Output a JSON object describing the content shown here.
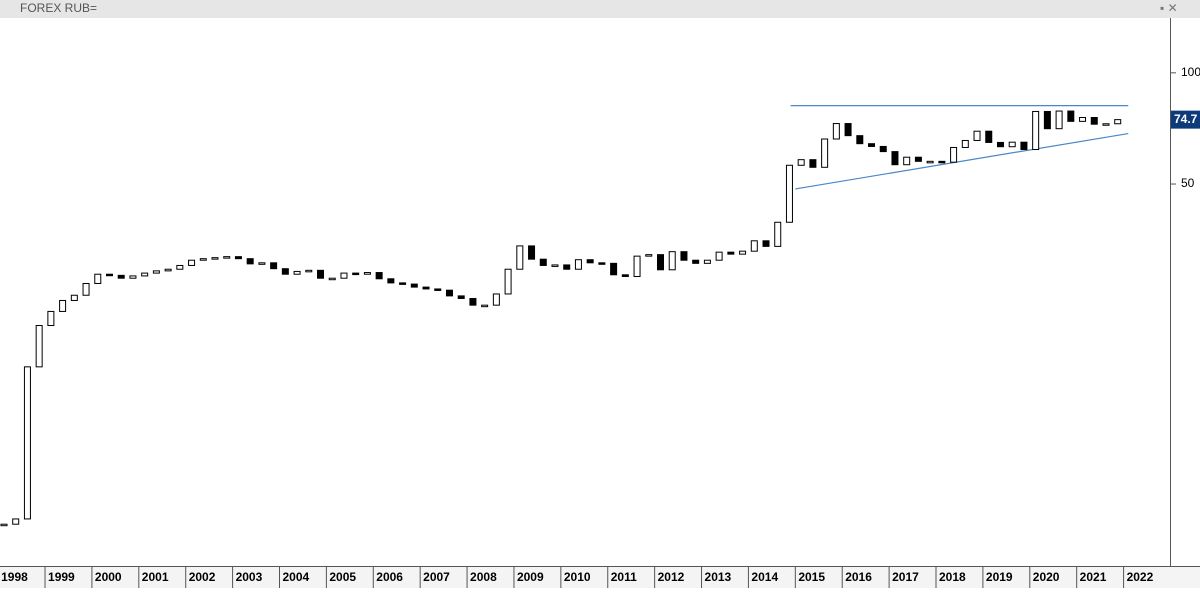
{
  "chart_data": {
    "type": "candlestick",
    "title": "FOREX RUB=",
    "log_scale": true,
    "up_color": "#ffffff",
    "down_color": "#000000",
    "x": [
      1998.125,
      1998.375,
      1998.625,
      1998.875,
      1999.125,
      1999.375,
      1999.625,
      1999.875,
      2000.125,
      2000.375,
      2000.625,
      2000.875,
      2001.125,
      2001.375,
      2001.625,
      2001.875,
      2002.125,
      2002.375,
      2002.625,
      2002.875,
      2003.125,
      2003.375,
      2003.625,
      2003.875,
      2004.125,
      2004.375,
      2004.625,
      2004.875,
      2005.125,
      2005.375,
      2005.625,
      2005.875,
      2006.125,
      2006.375,
      2006.625,
      2006.875,
      2007.125,
      2007.375,
      2007.625,
      2007.875,
      2008.125,
      2008.375,
      2008.625,
      2008.875,
      2009.125,
      2009.375,
      2009.625,
      2009.875,
      2010.125,
      2010.375,
      2010.625,
      2010.875,
      2011.125,
      2011.375,
      2011.625,
      2011.875,
      2012.125,
      2012.375,
      2012.625,
      2012.875,
      2013.125,
      2013.375,
      2013.625,
      2013.875,
      2014.125,
      2014.375,
      2014.625,
      2014.875,
      2015.125,
      2015.375,
      2015.625,
      2015.875,
      2016.125,
      2016.375,
      2016.625,
      2016.875,
      2017.125,
      2017.375,
      2017.625,
      2017.875,
      2018.125,
      2018.375,
      2018.625,
      2018.875,
      2019.125,
      2019.375,
      2019.625,
      2019.875,
      2020.125,
      2020.375,
      2020.625,
      2020.875,
      2021.125,
      2021.375,
      2021.625,
      2021.875
    ],
    "values": [
      6.0,
      6.2,
      16,
      20.7,
      22.6,
      24.2,
      25,
      26.9,
      28.5,
      28.3,
      27.8,
      28.2,
      28.7,
      29.1,
      29.4,
      30.1,
      31.1,
      31.4,
      31.6,
      31.8,
      31.4,
      30.4,
      30.6,
      29.5,
      28.5,
      29.0,
      29.2,
      27.8,
      27.8,
      28.7,
      28.5,
      28.8,
      27.7,
      27.0,
      26.8,
      26.3,
      26.0,
      25.8,
      24.9,
      24.5,
      23.5,
      23.5,
      25.2,
      29.4,
      34.0,
      31.3,
      30.1,
      30.2,
      29.4,
      31.2,
      30.6,
      30.5,
      28.4,
      28.1,
      31.9,
      32.2,
      29.3,
      32.8,
      31.1,
      30.5,
      31.1,
      32.7,
      32.3,
      32.9,
      35.1,
      33.9,
      39.4,
      56.2,
      58.2,
      55.5,
      66.2,
      72.9,
      67.6,
      64.3,
      63.2,
      61.2,
      56.4,
      59.1,
      57.6,
      57.6,
      57.3,
      62.8,
      65.6,
      69.5,
      64.8,
      63.1,
      64.9,
      62.0,
      78.6,
      70.6,
      78.8,
      73.9,
      75.7,
      72.6,
      72.8,
      74.7
    ],
    "xlim": [
      1998.04,
      2022.99
    ],
    "xticks": [
      1998,
      1999,
      2000,
      2001,
      2002,
      2003,
      2004,
      2005,
      2006,
      2007,
      2008,
      2009,
      2010,
      2011,
      2012,
      2013,
      2014,
      2015,
      2016,
      2017,
      2018,
      2019,
      2020,
      2021,
      2022
    ],
    "ylim": [
      4.8,
      139
    ],
    "yticks": [
      50,
      100
    ],
    "last_price": 74.7,
    "last_price_color": "#0d3b7a",
    "trendlines": [
      {
        "color": "#4a86c8",
        "x": [
          2014.9,
          2022.1
        ],
        "y": [
          81.5,
          81.5
        ]
      },
      {
        "color": "#4a86c8",
        "x": [
          2015.0,
          2022.1
        ],
        "y": [
          48.5,
          68.5
        ]
      }
    ]
  }
}
